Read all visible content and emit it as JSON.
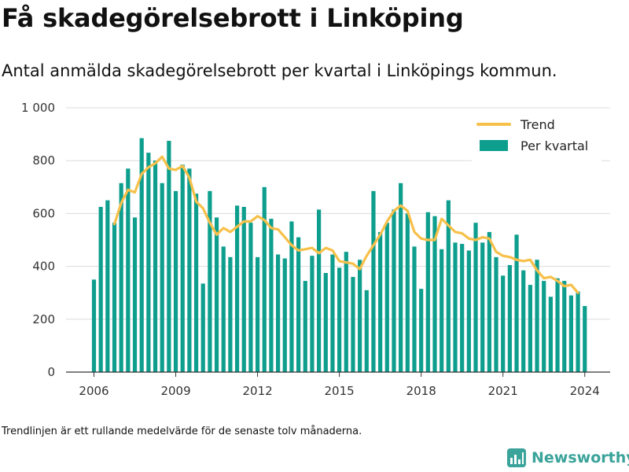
{
  "title": "Få skadegörelsebrott i Linköping",
  "subtitle": "Antal anmälda skadegörelsebrott per kvartal i Linköpings kommun.",
  "footnote": "Trendlinjen är ett rullande medelvärde för de senaste tolv månaderna.",
  "brand": "Newsworthy",
  "colors": {
    "bars": "#0e9e8e",
    "trend": "#f7c04a",
    "brand": "#3aa39a"
  },
  "chart_data": {
    "type": "bar",
    "x_start": "2006 Q1",
    "x_step": "quarter",
    "x_ticks": [
      "2006",
      "2009",
      "2012",
      "2015",
      "2018",
      "2021",
      "2024"
    ],
    "y_ticks": [
      "0",
      "200",
      "400",
      "600",
      "800",
      "1 000"
    ],
    "ylim": [
      0,
      1000
    ],
    "grid": true,
    "legend_position": "top-right",
    "series": [
      {
        "name": "Per kvartal",
        "kind": "bar",
        "values": [
          350,
          625,
          650,
          565,
          715,
          770,
          585,
          885,
          830,
          800,
          715,
          875,
          685,
          785,
          770,
          675,
          335,
          685,
          585,
          475,
          435,
          630,
          625,
          565,
          435,
          700,
          580,
          445,
          430,
          570,
          510,
          345,
          440,
          615,
          375,
          445,
          395,
          455,
          360,
          425,
          310,
          685,
          530,
          565,
          615,
          715,
          600,
          475,
          315,
          605,
          590,
          465,
          650,
          490,
          485,
          460,
          565,
          490,
          530,
          435,
          365,
          405,
          520,
          385,
          330,
          425,
          345,
          285,
          355,
          345,
          290,
          305,
          250
        ]
      },
      {
        "name": "Trend",
        "kind": "line",
        "start_index": 3,
        "values": [
          560,
          640,
          690,
          680,
          750,
          775,
          790,
          815,
          770,
          765,
          780,
          735,
          645,
          620,
          565,
          520,
          545,
          530,
          550,
          570,
          570,
          590,
          575,
          545,
          540,
          510,
          480,
          460,
          465,
          470,
          450,
          470,
          460,
          420,
          415,
          410,
          390,
          440,
          480,
          520,
          570,
          610,
          630,
          610,
          530,
          505,
          500,
          500,
          580,
          555,
          530,
          525,
          505,
          500,
          510,
          505,
          455,
          440,
          435,
          425,
          420,
          425,
          385,
          355,
          360,
          345,
          325,
          330,
          300
        ]
      }
    ]
  }
}
